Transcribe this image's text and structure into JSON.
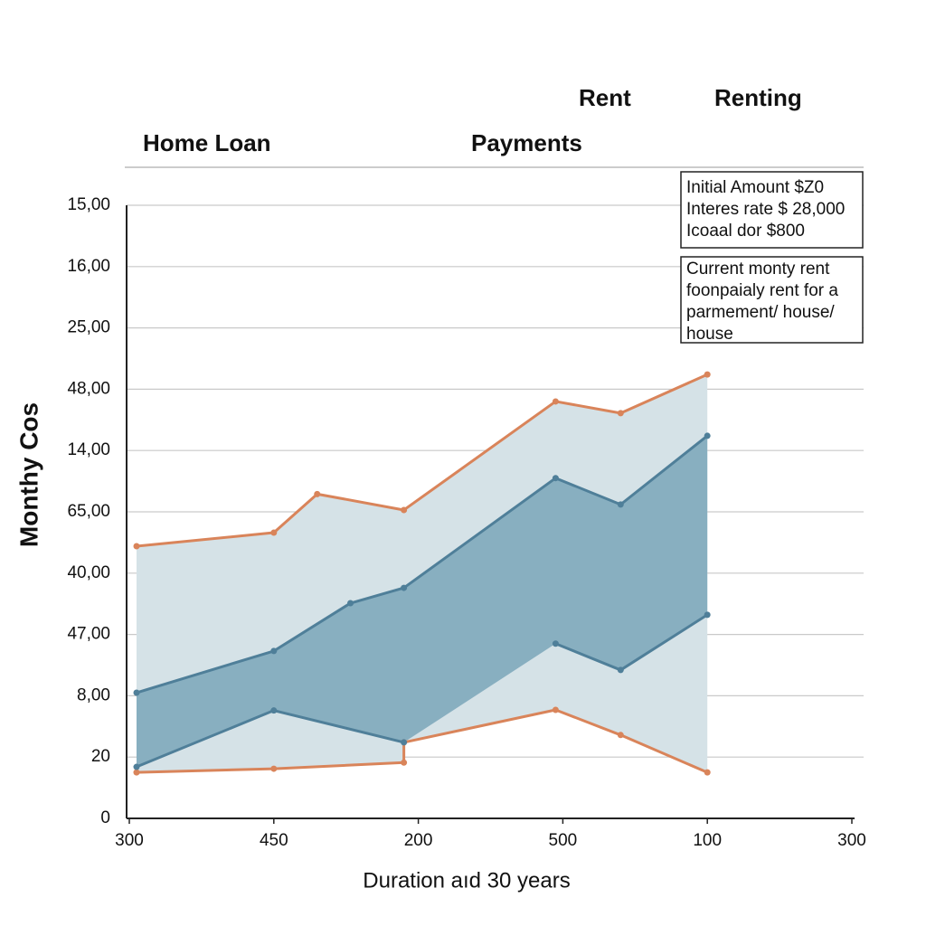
{
  "chart_data": {
    "type": "line",
    "headers": [
      "Rent",
      "Renting",
      "Home Loan",
      "Payments"
    ],
    "notes": [
      [
        "Initial Amount $Z0",
        "Interes rate $ 28,000",
        "Icoaal dor $800"
      ],
      [
        "Current monty rent",
        "foonpaialy rent for a",
        "parmement/ house/",
        "house"
      ]
    ],
    "xlabel": "Duration aıd 30 years",
    "ylabel": "Monthy Cos",
    "xlim": [
      0,
      5
    ],
    "xticks": [
      {
        "value": 0,
        "label": "300"
      },
      {
        "value": 1,
        "label": "450"
      },
      {
        "value": 2,
        "label": "200"
      },
      {
        "value": 3,
        "label": "500"
      },
      {
        "value": 4,
        "label": "100"
      },
      {
        "value": 5,
        "label": "300"
      }
    ],
    "ylim": [
      0,
      10
    ],
    "yticks": [
      0,
      {
        "value": 1,
        "label": "20"
      },
      {
        "value": 2,
        "label": "8,00"
      },
      {
        "value": 3,
        "label": "47,00"
      },
      {
        "value": 4,
        "label": "40,00"
      },
      {
        "value": 5,
        "label": "65,00"
      },
      {
        "value": 6,
        "label": "14,00"
      },
      {
        "value": 7,
        "label": "48,00"
      },
      {
        "value": 8,
        "label": "25,00"
      },
      {
        "value": 9,
        "label": "16,00"
      },
      {
        "value": 10,
        "label": "15,00"
      }
    ],
    "grid": true,
    "series": [
      {
        "color": "#d9845a",
        "fill": "#d5e2e7",
        "x": [
          0.05,
          1,
          1.3,
          1.9,
          2.95,
          3.4,
          4
        ],
        "values": [
          4.44,
          4.66,
          5.29,
          5.03,
          6.8,
          6.61,
          7.24
        ]
      },
      {
        "color": "#d9845a",
        "x": [
          0.05,
          1,
          1.9,
          1.9,
          2.95,
          3.4,
          4
        ],
        "values": [
          0.75,
          0.81,
          0.91,
          1.24,
          1.77,
          1.36,
          0.75
        ]
      },
      {
        "color": "#4f7f99",
        "fill": "#88afc0",
        "x": [
          0.05,
          1,
          1.53,
          1.9,
          2.95,
          3.4,
          4
        ],
        "values": [
          2.05,
          2.73,
          3.51,
          3.76,
          5.55,
          5.12,
          6.24
        ]
      },
      {
        "color": "#4f7f99",
        "x": [
          0.05,
          1,
          1.9,
          1.9,
          2.95,
          3.4,
          4
        ],
        "values": [
          0.84,
          1.76,
          1.24,
          null,
          2.85,
          2.42,
          3.32
        ]
      }
    ]
  }
}
